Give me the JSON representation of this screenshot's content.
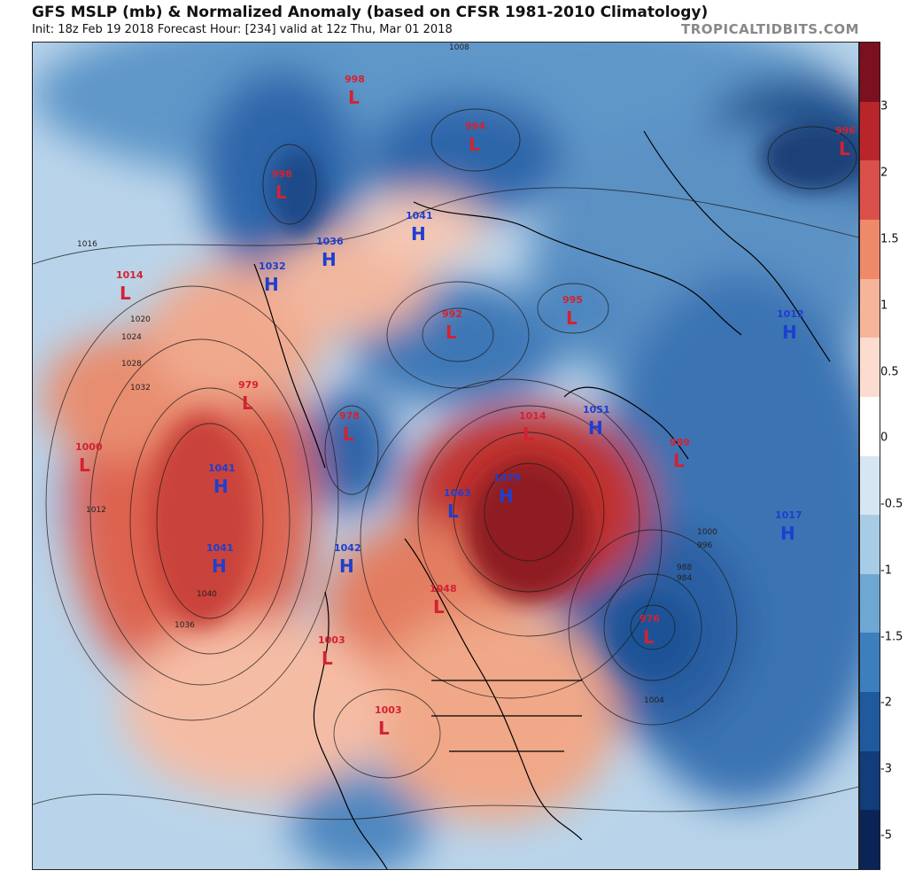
{
  "header": {
    "title": "GFS MSLP (mb) & Normalized Anomaly (based on CFSR 1981-2010 Climatology)",
    "subtitle": "Init: 18z Feb 19 2018   Forecast Hour: [234]   valid at 12z Thu, Mar 01 2018",
    "brand": "TROPICALTIDBITS.COM"
  },
  "colorbar": {
    "ticks": [
      "3",
      "2",
      "1.5",
      "1",
      "0.5",
      "0",
      "-0.5",
      "-1",
      "-1.5",
      "-2",
      "-3",
      "-5"
    ],
    "colors": [
      "#7a1020",
      "#b8262c",
      "#d9504a",
      "#ee8a6a",
      "#f6b49a",
      "#fbdccf",
      "#ffffff",
      "#d6e6f3",
      "#a9cce6",
      "#6fa7d3",
      "#3d7fbd",
      "#1f5a9e",
      "#123c7a",
      "#0b2458"
    ]
  },
  "systems": [
    {
      "type": "L",
      "pressure": "998"
    },
    {
      "type": "L",
      "pressure": "994"
    },
    {
      "type": "L",
      "pressure": "996"
    },
    {
      "type": "L",
      "pressure": "998"
    },
    {
      "type": "H",
      "pressure": "1041"
    },
    {
      "type": "H",
      "pressure": "1036"
    },
    {
      "type": "H",
      "pressure": "1032"
    },
    {
      "type": "L",
      "pressure": "1014"
    },
    {
      "type": "L",
      "pressure": "992"
    },
    {
      "type": "L",
      "pressure": "995"
    },
    {
      "type": "H",
      "pressure": "1012"
    },
    {
      "type": "L",
      "pressure": "979"
    },
    {
      "type": "L",
      "pressure": "978"
    },
    {
      "type": "L",
      "pressure": "1014"
    },
    {
      "type": "H",
      "pressure": "1051"
    },
    {
      "type": "L",
      "pressure": "989"
    },
    {
      "type": "L",
      "pressure": "1000"
    },
    {
      "type": "H",
      "pressure": "1041"
    },
    {
      "type": "H",
      "pressure": "1079"
    },
    {
      "type": "L",
      "pressure": "1063"
    },
    {
      "type": "H",
      "pressure": "1017"
    },
    {
      "type": "H",
      "pressure": "1041"
    },
    {
      "type": "H",
      "pressure": "1042"
    },
    {
      "type": "L",
      "pressure": "1048"
    },
    {
      "type": "L",
      "pressure": "976"
    },
    {
      "type": "L",
      "pressure": "1003"
    },
    {
      "type": "L",
      "pressure": "1003"
    }
  ],
  "isobar_labels": [
    "1008",
    "1012",
    "1016",
    "1020",
    "1024",
    "1028",
    "1032",
    "1036",
    "1040",
    "1004",
    "1000",
    "988",
    "984",
    "996"
  ]
}
